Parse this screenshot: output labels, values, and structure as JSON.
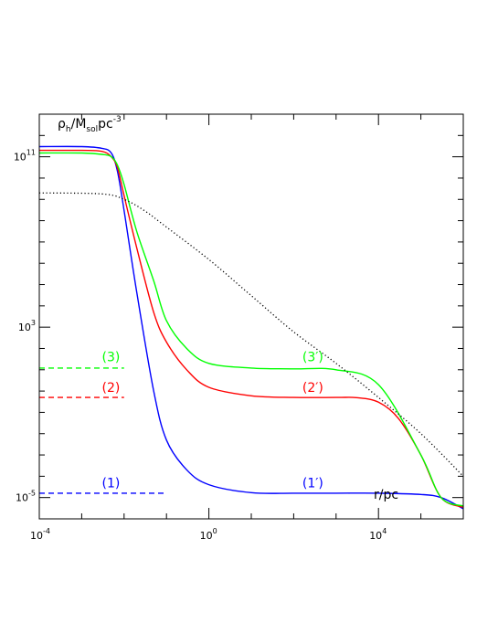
{
  "chart_data": {
    "type": "line",
    "xscale": "log",
    "yscale": "log",
    "xlim": [
      0.0001,
      1000000
    ],
    "ylim": [
      1e-06,
      10000000000000
    ],
    "x_ticks": [
      {
        "base": "10",
        "exp": "-4",
        "value": 0.0001
      },
      {
        "base": "10",
        "exp": "0",
        "value": 1
      },
      {
        "base": "10",
        "exp": "4",
        "value": 10000
      }
    ],
    "y_ticks": [
      {
        "base": "10",
        "exp": "-5",
        "value": 1e-05
      },
      {
        "base": "10",
        "exp": "3",
        "value": 1000
      },
      {
        "base": "10",
        "exp": "11",
        "value": 100000000000
      }
    ],
    "ylabel": {
      "base": "ρ",
      "sub1": "h",
      "mid": "/M",
      "sub2": "sol",
      "unit": "pc",
      "sup": "-3"
    },
    "xlabel": "r/pc",
    "colors": {
      "1": "#0000ff",
      "2": "#ff0000",
      "3": "#00ff00",
      "dotted": "#000000"
    },
    "series": [
      {
        "id": "1",
        "style": "solid",
        "color": "#0000ff",
        "x": [
          0.0001,
          0.001,
          0.003,
          0.005,
          0.007,
          0.01,
          0.02,
          0.05,
          0.1,
          0.3,
          1,
          10,
          100,
          1000,
          10000,
          100000,
          300000,
          1000000
        ],
        "y": [
          300000000000,
          300000000000,
          250000000000,
          150000000000,
          20000000000,
          300000000,
          40000,
          1,
          0.005,
          0.0002,
          4e-05,
          1.7e-05,
          1.6e-05,
          1.6e-05,
          1.6e-05,
          1.4e-05,
          1e-05,
          3e-06
        ]
      },
      {
        "id": "2",
        "style": "solid",
        "color": "#ff0000",
        "x": [
          0.0001,
          0.001,
          0.003,
          0.005,
          0.007,
          0.01,
          0.02,
          0.05,
          0.1,
          0.3,
          1,
          10,
          100,
          1000,
          3000,
          10000,
          30000,
          100000,
          300000,
          1000000
        ],
        "y": [
          200000000000,
          200000000000,
          180000000000,
          100000000000,
          30000000000,
          1500000000,
          5000000,
          5000,
          200,
          10,
          1.5,
          0.6,
          0.5,
          0.5,
          0.49,
          0.3,
          0.05,
          0.001,
          1e-05,
          3.5e-06
        ]
      },
      {
        "id": "3",
        "style": "solid",
        "color": "#00ff00",
        "x": [
          0.0001,
          0.001,
          0.003,
          0.005,
          0.007,
          0.01,
          0.02,
          0.05,
          0.1,
          0.3,
          1,
          10,
          100,
          1000,
          10000,
          100000,
          300000,
          1000000
        ],
        "y": [
          150000000000,
          150000000000,
          130000000000,
          100000000000,
          40000000000,
          5000000000,
          30000000,
          150000,
          2000,
          100,
          20,
          12,
          11,
          10,
          2,
          0.001,
          1e-05,
          4e-06
        ]
      },
      {
        "id": "1-const",
        "style": "dashed",
        "color": "#0000ff",
        "x": [
          0.0001,
          0.1
        ],
        "y": [
          1.6e-05,
          1.6e-05
        ]
      },
      {
        "id": "2-const",
        "style": "dashed",
        "color": "#ff0000",
        "x": [
          0.0001,
          0.01
        ],
        "y": [
          0.5,
          0.5
        ]
      },
      {
        "id": "3-const",
        "style": "dashed",
        "color": "#00ff00",
        "x": [
          0.0001,
          0.01
        ],
        "y": [
          12,
          12
        ]
      },
      {
        "id": "dotted",
        "style": "dotted",
        "color": "#000000",
        "x": [
          0.0001,
          0.003,
          0.01,
          0.03,
          0.1,
          1,
          10,
          100,
          1000,
          10000,
          100000,
          1000000
        ],
        "y": [
          2000000000,
          1800000000,
          1000000000,
          300000000,
          50000000,
          1500000,
          30000,
          600,
          20,
          0.5,
          0.01,
          0.0001
        ]
      }
    ],
    "annotations": [
      {
        "text": "(1)",
        "x": 0.003,
        "y": 3e-05,
        "color": "#0000ff"
      },
      {
        "text": "(2)",
        "x": 0.003,
        "y": 0.9,
        "color": "#ff0000"
      },
      {
        "text": "(3)",
        "x": 0.003,
        "y": 25,
        "color": "#00ff00"
      },
      {
        "text": "(1′)",
        "x": 160,
        "y": 3e-05,
        "color": "#0000ff"
      },
      {
        "text": "(2′)",
        "x": 160,
        "y": 0.9,
        "color": "#ff0000"
      },
      {
        "text": "(3′)",
        "x": 160,
        "y": 25,
        "color": "#00ff00"
      }
    ]
  }
}
